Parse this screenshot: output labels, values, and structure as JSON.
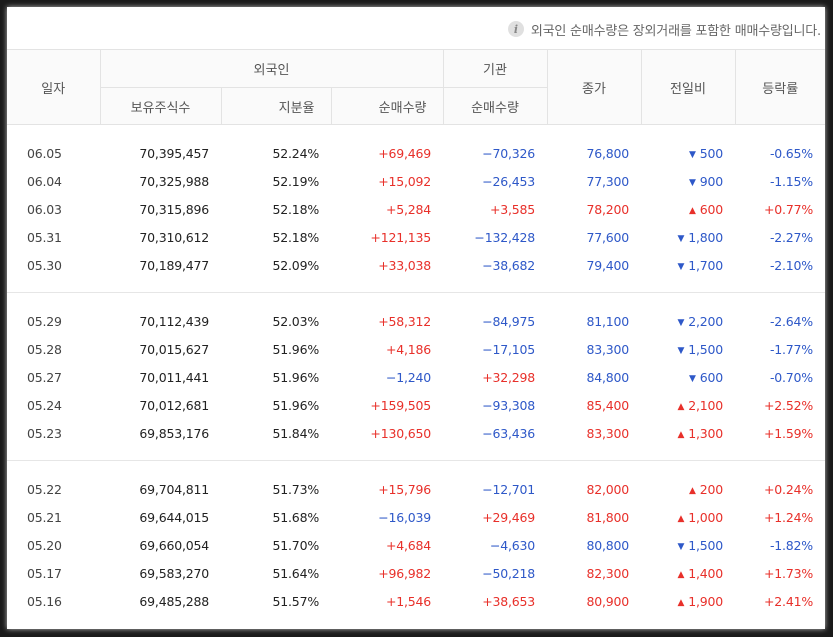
{
  "notice": "외국인 순매수량은 장외거래를 포함한 매매수량입니다.",
  "headers": {
    "date": "일자",
    "foreign": "외국인",
    "institution": "기관",
    "close": "종가",
    "change": "전일비",
    "rate": "등락률",
    "holdings": "보유주식수",
    "ratio": "지분율",
    "foreign_net": "순매수량",
    "inst_net": "순매수량"
  },
  "colors": {
    "up": "#e8302a",
    "down": "#2e58c8"
  },
  "rows": [
    {
      "date": "06.05",
      "holdings": "70,395,457",
      "ratio": "52.24%",
      "foreign_net": "+69,469",
      "inst_net": "−70,326",
      "close": "76,800",
      "dir": "down",
      "change": "500",
      "rate": "-0.65%"
    },
    {
      "date": "06.04",
      "holdings": "70,325,988",
      "ratio": "52.19%",
      "foreign_net": "+15,092",
      "inst_net": "−26,453",
      "close": "77,300",
      "dir": "down",
      "change": "900",
      "rate": "-1.15%"
    },
    {
      "date": "06.03",
      "holdings": "70,315,896",
      "ratio": "52.18%",
      "foreign_net": "+5,284",
      "inst_net": "+3,585",
      "close": "78,200",
      "dir": "up",
      "change": "600",
      "rate": "+0.77%"
    },
    {
      "date": "05.31",
      "holdings": "70,310,612",
      "ratio": "52.18%",
      "foreign_net": "+121,135",
      "inst_net": "−132,428",
      "close": "77,600",
      "dir": "down",
      "change": "1,800",
      "rate": "-2.27%"
    },
    {
      "date": "05.30",
      "holdings": "70,189,477",
      "ratio": "52.09%",
      "foreign_net": "+33,038",
      "inst_net": "−38,682",
      "close": "79,400",
      "dir": "down",
      "change": "1,700",
      "rate": "-2.10%"
    },
    {
      "date": "05.29",
      "holdings": "70,112,439",
      "ratio": "52.03%",
      "foreign_net": "+58,312",
      "inst_net": "−84,975",
      "close": "81,100",
      "dir": "down",
      "change": "2,200",
      "rate": "-2.64%"
    },
    {
      "date": "05.28",
      "holdings": "70,015,627",
      "ratio": "51.96%",
      "foreign_net": "+4,186",
      "inst_net": "−17,105",
      "close": "83,300",
      "dir": "down",
      "change": "1,500",
      "rate": "-1.77%"
    },
    {
      "date": "05.27",
      "holdings": "70,011,441",
      "ratio": "51.96%",
      "foreign_net": "−1,240",
      "inst_net": "+32,298",
      "close": "84,800",
      "dir": "down",
      "change": "600",
      "rate": "-0.70%"
    },
    {
      "date": "05.24",
      "holdings": "70,012,681",
      "ratio": "51.96%",
      "foreign_net": "+159,505",
      "inst_net": "−93,308",
      "close": "85,400",
      "dir": "up",
      "change": "2,100",
      "rate": "+2.52%"
    },
    {
      "date": "05.23",
      "holdings": "69,853,176",
      "ratio": "51.84%",
      "foreign_net": "+130,650",
      "inst_net": "−63,436",
      "close": "83,300",
      "dir": "up",
      "change": "1,300",
      "rate": "+1.59%"
    },
    {
      "date": "05.22",
      "holdings": "69,704,811",
      "ratio": "51.73%",
      "foreign_net": "+15,796",
      "inst_net": "−12,701",
      "close": "82,000",
      "dir": "up",
      "change": "200",
      "rate": "+0.24%"
    },
    {
      "date": "05.21",
      "holdings": "69,644,015",
      "ratio": "51.68%",
      "foreign_net": "−16,039",
      "inst_net": "+29,469",
      "close": "81,800",
      "dir": "up",
      "change": "1,000",
      "rate": "+1.24%"
    },
    {
      "date": "05.20",
      "holdings": "69,660,054",
      "ratio": "51.70%",
      "foreign_net": "+4,684",
      "inst_net": "−4,630",
      "close": "80,800",
      "dir": "down",
      "change": "1,500",
      "rate": "-1.82%"
    },
    {
      "date": "05.17",
      "holdings": "69,583,270",
      "ratio": "51.64%",
      "foreign_net": "+96,982",
      "inst_net": "−50,218",
      "close": "82,300",
      "dir": "up",
      "change": "1,400",
      "rate": "+1.73%"
    },
    {
      "date": "05.16",
      "holdings": "69,485,288",
      "ratio": "51.57%",
      "foreign_net": "+1,546",
      "inst_net": "+38,653",
      "close": "80,900",
      "dir": "up",
      "change": "1,900",
      "rate": "+2.41%"
    }
  ]
}
